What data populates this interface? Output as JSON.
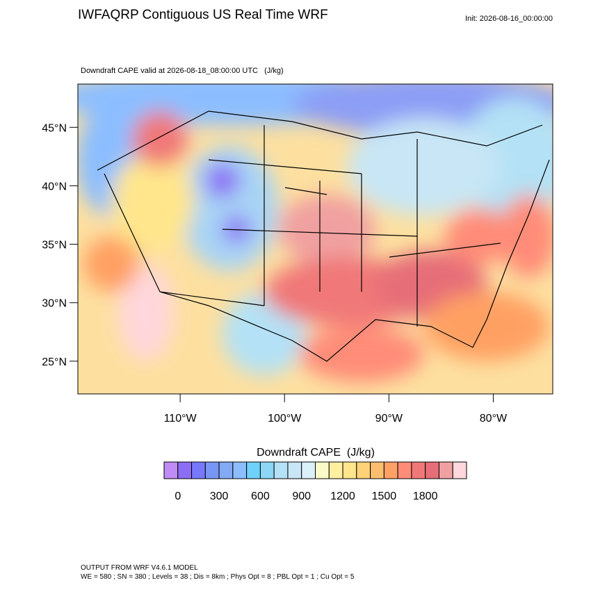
{
  "chart_data": {
    "type": "map",
    "title": "IWFAQRP Contiguous US Real Time WRF",
    "init": "Init: 2026-08-16_00:00:00",
    "subtitle": "Downdraft CAPE valid at 2026-08-18_08:00:00 UTC   (J/kg)",
    "xlim": [
      -119.8,
      -74.3
    ],
    "ylim": [
      22.2,
      48.7
    ],
    "xticks": [
      {
        "value": -110,
        "label": "110°W"
      },
      {
        "value": -100,
        "label": "100°W"
      },
      {
        "value": -90,
        "label": "90°W"
      },
      {
        "value": -80,
        "label": "80°W"
      }
    ],
    "yticks": [
      {
        "value": 25,
        "label": "25°N"
      },
      {
        "value": 30,
        "label": "30°N"
      },
      {
        "value": 35,
        "label": "35°N"
      },
      {
        "value": 40,
        "label": "40°N"
      },
      {
        "value": 45,
        "label": "45°N"
      }
    ],
    "colorbar": {
      "title": "Downdraft CAPE  (J/kg)",
      "levels": [
        0,
        100,
        200,
        300,
        400,
        500,
        600,
        700,
        800,
        900,
        1000,
        1100,
        1200,
        1300,
        1400,
        1500,
        1600,
        1700,
        1800,
        1900,
        2000
      ],
      "ticks": [
        0,
        300,
        600,
        900,
        1200,
        1500,
        1800
      ],
      "colors": [
        "#bf8cf5",
        "#8c6ef5",
        "#7878ff",
        "#7896f5",
        "#82aaf5",
        "#8cbeff",
        "#6ed2fa",
        "#8cd7f5",
        "#b4e1f5",
        "#c8e6f5",
        "#dcf0fa",
        "#fafac8",
        "#fff0a0",
        "#ffe68c",
        "#ffd278",
        "#fabe6e",
        "#ffa064",
        "#ff8c78",
        "#f07878",
        "#e66e78",
        "#f0a0a0",
        "#ffd7dc"
      ]
    },
    "footer": [
      "OUTPUT FROM WRF V4.6.1 MODEL",
      "WE = 580 ; SN = 380 ; Levels = 38 ; Dis = 8km ; Phys Opt = 8 ; PBL Opt = 1 ; Cu Opt = 5"
    ]
  }
}
